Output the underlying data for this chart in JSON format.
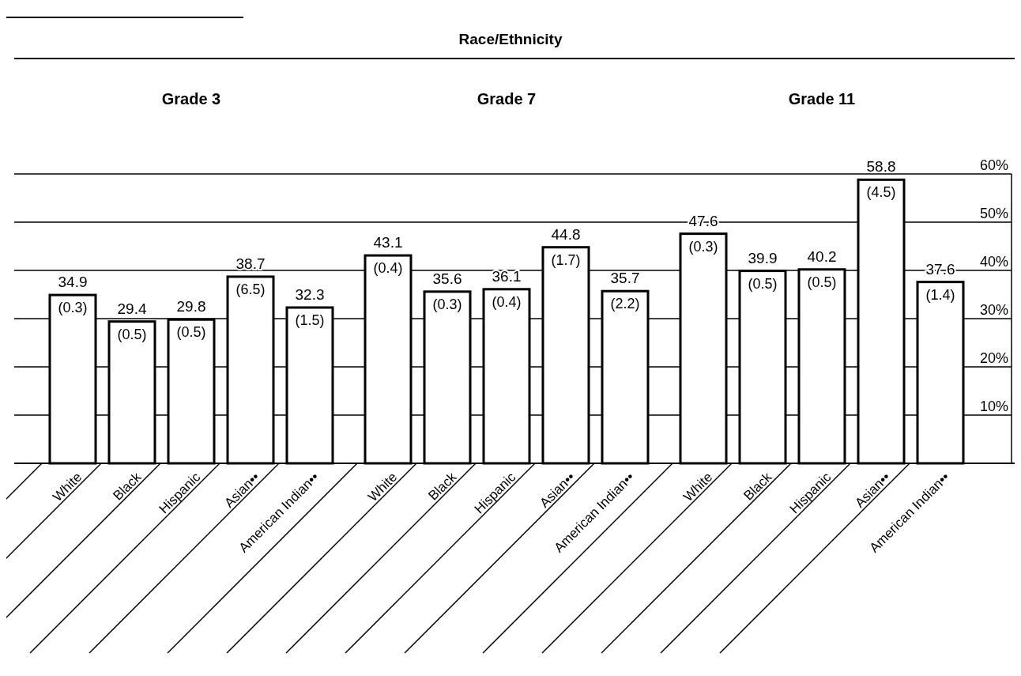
{
  "chart_data": {
    "type": "bar",
    "title": "Race/Ethnicity",
    "categories": [
      "White",
      "Black",
      "Hispanic",
      "Asian••",
      "American Indian••",
      "White",
      "Black",
      "Hispanic",
      "Asian••",
      "American Indian••",
      "White",
      "Black",
      "Hispanic",
      "Asian••",
      "American Indian••"
    ],
    "values": [
      34.9,
      29.4,
      29.8,
      38.7,
      32.3,
      43.1,
      35.6,
      36.1,
      44.8,
      35.7,
      47.6,
      39.9,
      40.2,
      58.8,
      37.6
    ],
    "value_labels": [
      "34.9\n(0.3)",
      "29.4\n(0.5)",
      "29.8\n(0.5)",
      "38.7\n(6.5)",
      "32.3\n(1.5)",
      "43.1\n(0.4)",
      "35.6\n(0.3)",
      "36.1\n(0.4)",
      "44.8\n(1.7)",
      "35.7\n(2.2)",
      "47.6\n(0.3)",
      "39.9\n(0.5)",
      "40.2\n(0.5)",
      "58.8\n(4.5)",
      "37.6\n(1.4)"
    ],
    "color": "#ffffff",
    "annotations": [
      "Grade 3",
      "Grade 7",
      "Grade 11"
    ],
    "ylim": [
      0,
      60
    ],
    "yticks": [
      {
        "value": 10,
        "label": "10%"
      },
      {
        "value": 20,
        "label": "20%"
      },
      {
        "value": 30,
        "label": "30%"
      },
      {
        "value": 40,
        "label": "40%"
      },
      {
        "value": 50,
        "label": "50%"
      },
      {
        "value": 60,
        "label": "60%"
      }
    ],
    "grid": "y"
  }
}
